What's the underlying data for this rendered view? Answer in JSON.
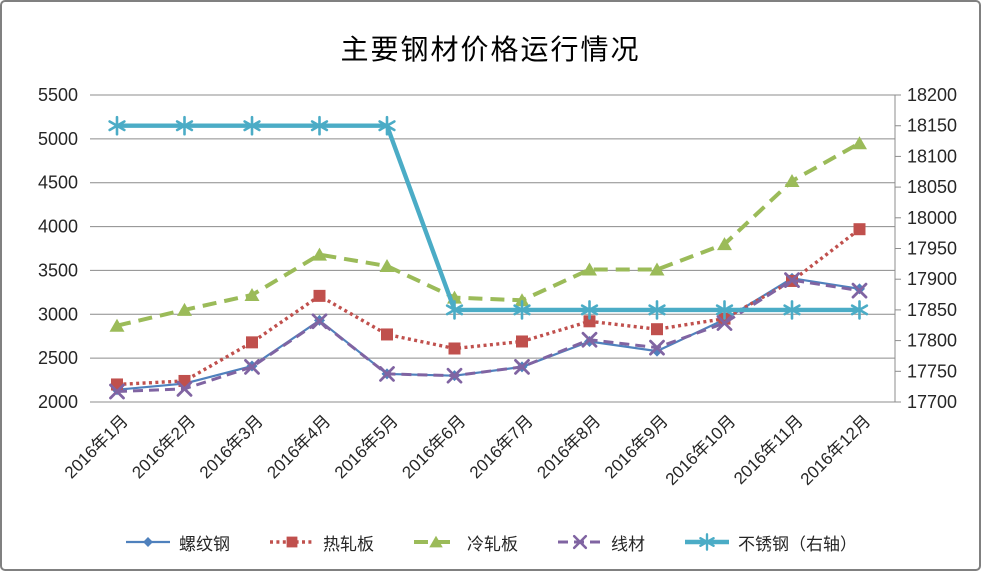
{
  "page": {
    "background": "#FFFFFF",
    "frame_border_color": "#808080"
  },
  "colors": {
    "grid": "#8C8C8C",
    "axis_line": "#8C8C8C",
    "axis_text": "#262626",
    "title_text": "#000000"
  },
  "chart_data": {
    "type": "line",
    "title": "主要钢材价格运行情况",
    "grid": true,
    "legend_position": "bottom",
    "categories": [
      "2016年1月",
      "2016年2月",
      "2016年3月",
      "2016年4月",
      "2016年5月",
      "2016年6月",
      "2016年7月",
      "2016年8月",
      "2016年9月",
      "2016年10月",
      "2016年11月",
      "2016年12月"
    ],
    "left_axis": {
      "min": 2000,
      "max": 5500,
      "step": 500,
      "tick_labels": [
        "5500",
        "5000",
        "4500",
        "4000",
        "3500",
        "3000",
        "2500",
        "2000"
      ]
    },
    "right_axis": {
      "min": 17700,
      "max": 18200,
      "step": 50,
      "tick_labels": [
        "18200",
        "18150",
        "18100",
        "18050",
        "18000",
        "17950",
        "17900",
        "17850",
        "17800",
        "17750",
        "17700"
      ]
    },
    "series": [
      {
        "id": "rebar",
        "name": "螺纹钢",
        "axis": "left",
        "color": "#4F81BD",
        "marker": "diamond",
        "line": "solid",
        "width": 2.2,
        "values": [
          2140,
          2210,
          2410,
          2930,
          2320,
          2300,
          2400,
          2690,
          2580,
          2940,
          3410,
          3290
        ]
      },
      {
        "id": "hot-rolled-plate",
        "name": "热轧板",
        "axis": "left",
        "color": "#C0504D",
        "marker": "square",
        "line": "dotted",
        "width": 3.4,
        "values": [
          2200,
          2240,
          2680,
          3210,
          2770,
          2610,
          2690,
          2920,
          2830,
          2950,
          3380,
          3970
        ]
      },
      {
        "id": "cold-rolled-plate",
        "name": "冷轧板",
        "axis": "left",
        "color": "#9BBB59",
        "marker": "triangle",
        "line": "long-dash",
        "width": 4,
        "values": [
          2870,
          3050,
          3220,
          3680,
          3550,
          3190,
          3160,
          3510,
          3510,
          3800,
          4520,
          4950
        ]
      },
      {
        "id": "wire-rod",
        "name": "线材",
        "axis": "left",
        "color": "#8064A2",
        "marker": "x",
        "line": "dash",
        "width": 3,
        "values": [
          2120,
          2150,
          2400,
          2920,
          2320,
          2300,
          2400,
          2710,
          2620,
          2900,
          3390,
          3270
        ]
      },
      {
        "id": "stainless-steel",
        "name": "不锈钢（右轴）",
        "axis": "right",
        "color": "#4BACC6",
        "marker": "asterisk",
        "line": "solid",
        "width": 4.4,
        "values": [
          18150,
          18150,
          18150,
          18150,
          18150,
          17850,
          17850,
          17850,
          17850,
          17850,
          17850,
          17850
        ]
      }
    ]
  }
}
